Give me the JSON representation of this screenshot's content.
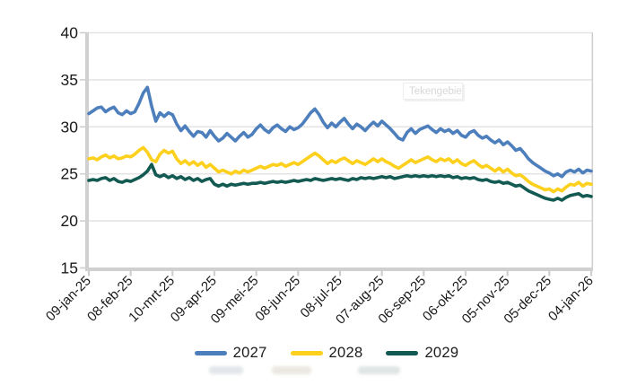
{
  "watermark": {
    "label": "Tekengebied"
  },
  "colors": {
    "grid": "#e4e4e4",
    "axis": "#d0d0d0",
    "tick": "#cfcfcf",
    "label": "#1a1a1a",
    "series_2027": "#4e7fbd",
    "series_2028": "#fcd01c",
    "series_2029": "#135a52"
  },
  "chart_data": {
    "type": "line",
    "title": "",
    "xlabel": "",
    "ylabel": "",
    "ylim": [
      15,
      40
    ],
    "y_ticks": [
      40,
      35,
      30,
      25,
      20,
      15
    ],
    "grid": "horizontal",
    "legend_position": "bottom",
    "x_tick_labels": [
      "09-jan-25",
      "08-feb-25",
      "10-mrt-25",
      "09-apr-25",
      "09-mei-25",
      "08-jun-25",
      "08-jul-25",
      "07-aug-25",
      "06-sep-25",
      "06-okt-25",
      "05-nov-25",
      "05-dec-25",
      "04-jan-26"
    ],
    "series": [
      {
        "name": "2027",
        "color": "#4e7fbd",
        "values": [
          31.4,
          31.7,
          32.0,
          32.1,
          31.6,
          31.9,
          32.1,
          31.5,
          31.3,
          31.7,
          31.4,
          31.6,
          32.5,
          33.6,
          34.2,
          32.2,
          30.6,
          31.5,
          31.1,
          31.5,
          31.3,
          30.3,
          29.6,
          30.1,
          29.5,
          29.0,
          29.5,
          29.4,
          28.9,
          29.6,
          29.0,
          28.5,
          28.8,
          29.3,
          28.9,
          28.5,
          29.0,
          29.4,
          28.9,
          29.2,
          29.8,
          30.2,
          29.7,
          29.4,
          29.9,
          30.2,
          29.8,
          29.5,
          30.0,
          29.7,
          29.9,
          30.3,
          30.9,
          31.5,
          31.9,
          31.3,
          30.5,
          29.9,
          30.4,
          30.0,
          30.5,
          30.9,
          30.3,
          29.8,
          30.3,
          30.0,
          29.6,
          30.1,
          30.5,
          30.1,
          30.6,
          30.2,
          29.8,
          29.3,
          28.8,
          28.6,
          29.4,
          29.8,
          29.3,
          29.7,
          29.9,
          30.1,
          29.7,
          29.4,
          29.8,
          29.5,
          29.7,
          29.3,
          29.6,
          29.1,
          28.9,
          29.4,
          29.6,
          29.1,
          28.8,
          29.0,
          28.6,
          28.3,
          28.6,
          28.1,
          28.4,
          28.0,
          27.5,
          27.7,
          27.2,
          26.6,
          26.2,
          25.9,
          25.6,
          25.3,
          25.1,
          24.8,
          25.0,
          24.7,
          25.2,
          25.4,
          25.2,
          25.5,
          25.1,
          25.4,
          25.3
        ]
      },
      {
        "name": "2028",
        "color": "#fcd01c",
        "values": [
          26.6,
          26.7,
          26.5,
          26.8,
          27.0,
          26.7,
          26.9,
          26.6,
          26.7,
          26.9,
          26.8,
          27.1,
          27.5,
          27.8,
          27.3,
          26.5,
          26.3,
          27.1,
          27.5,
          27.2,
          27.4,
          26.6,
          26.1,
          26.4,
          26.0,
          26.3,
          25.9,
          26.2,
          25.7,
          26.0,
          25.6,
          25.2,
          25.4,
          25.2,
          25.0,
          25.3,
          25.1,
          25.4,
          25.2,
          25.4,
          25.6,
          25.8,
          25.6,
          25.8,
          26.0,
          25.9,
          26.1,
          25.8,
          26.0,
          26.2,
          26.0,
          26.3,
          26.6,
          26.9,
          27.2,
          26.9,
          26.5,
          26.1,
          26.4,
          26.2,
          26.5,
          26.7,
          26.4,
          26.1,
          26.4,
          26.2,
          26.0,
          26.3,
          26.6,
          26.3,
          26.6,
          26.3,
          26.1,
          25.8,
          25.6,
          25.9,
          26.2,
          26.5,
          26.2,
          26.4,
          26.6,
          26.8,
          26.5,
          26.3,
          26.6,
          26.4,
          26.6,
          26.2,
          26.5,
          26.1,
          25.9,
          26.2,
          26.4,
          26.0,
          25.7,
          25.9,
          25.6,
          25.3,
          25.6,
          25.2,
          25.5,
          25.1,
          24.8,
          24.9,
          24.6,
          24.2,
          23.9,
          23.7,
          23.5,
          23.3,
          23.4,
          23.1,
          23.4,
          23.2,
          23.6,
          23.9,
          23.8,
          24.1,
          23.7,
          24.0,
          23.9
        ]
      },
      {
        "name": "2029",
        "color": "#135a52",
        "values": [
          24.3,
          24.4,
          24.3,
          24.5,
          24.6,
          24.3,
          24.5,
          24.2,
          24.1,
          24.3,
          24.2,
          24.4,
          24.6,
          24.9,
          25.3,
          26.0,
          24.9,
          24.7,
          24.9,
          24.6,
          24.8,
          24.5,
          24.7,
          24.4,
          24.6,
          24.3,
          24.5,
          24.2,
          24.4,
          24.5,
          23.9,
          23.7,
          23.9,
          23.7,
          23.9,
          23.8,
          23.9,
          24.0,
          23.9,
          24.0,
          24.0,
          24.1,
          24.0,
          24.1,
          24.2,
          24.1,
          24.2,
          24.1,
          24.2,
          24.3,
          24.2,
          24.3,
          24.4,
          24.3,
          24.5,
          24.4,
          24.3,
          24.4,
          24.5,
          24.4,
          24.5,
          24.4,
          24.3,
          24.5,
          24.4,
          24.6,
          24.5,
          24.6,
          24.5,
          24.6,
          24.7,
          24.6,
          24.7,
          24.5,
          24.6,
          24.7,
          24.8,
          24.7,
          24.8,
          24.7,
          24.8,
          24.7,
          24.8,
          24.7,
          24.8,
          24.7,
          24.8,
          24.6,
          24.7,
          24.5,
          24.6,
          24.5,
          24.6,
          24.4,
          24.3,
          24.4,
          24.2,
          24.1,
          24.2,
          24.0,
          24.1,
          23.9,
          23.7,
          23.8,
          23.5,
          23.2,
          23.0,
          22.8,
          22.6,
          22.4,
          22.3,
          22.2,
          22.4,
          22.2,
          22.5,
          22.7,
          22.8,
          22.9,
          22.6,
          22.7,
          22.6
        ]
      }
    ]
  }
}
